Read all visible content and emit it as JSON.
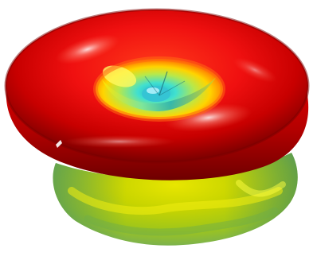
{
  "scene": {
    "subject": "3d-surface-plot",
    "colormap": [
      "#8b0000",
      "#cc0000",
      "#ff2a00",
      "#ff8c00",
      "#ffd400",
      "#c8d200",
      "#7ccf6a",
      "#40e0d0",
      "#00c0ff"
    ],
    "background": "#ffffff"
  }
}
